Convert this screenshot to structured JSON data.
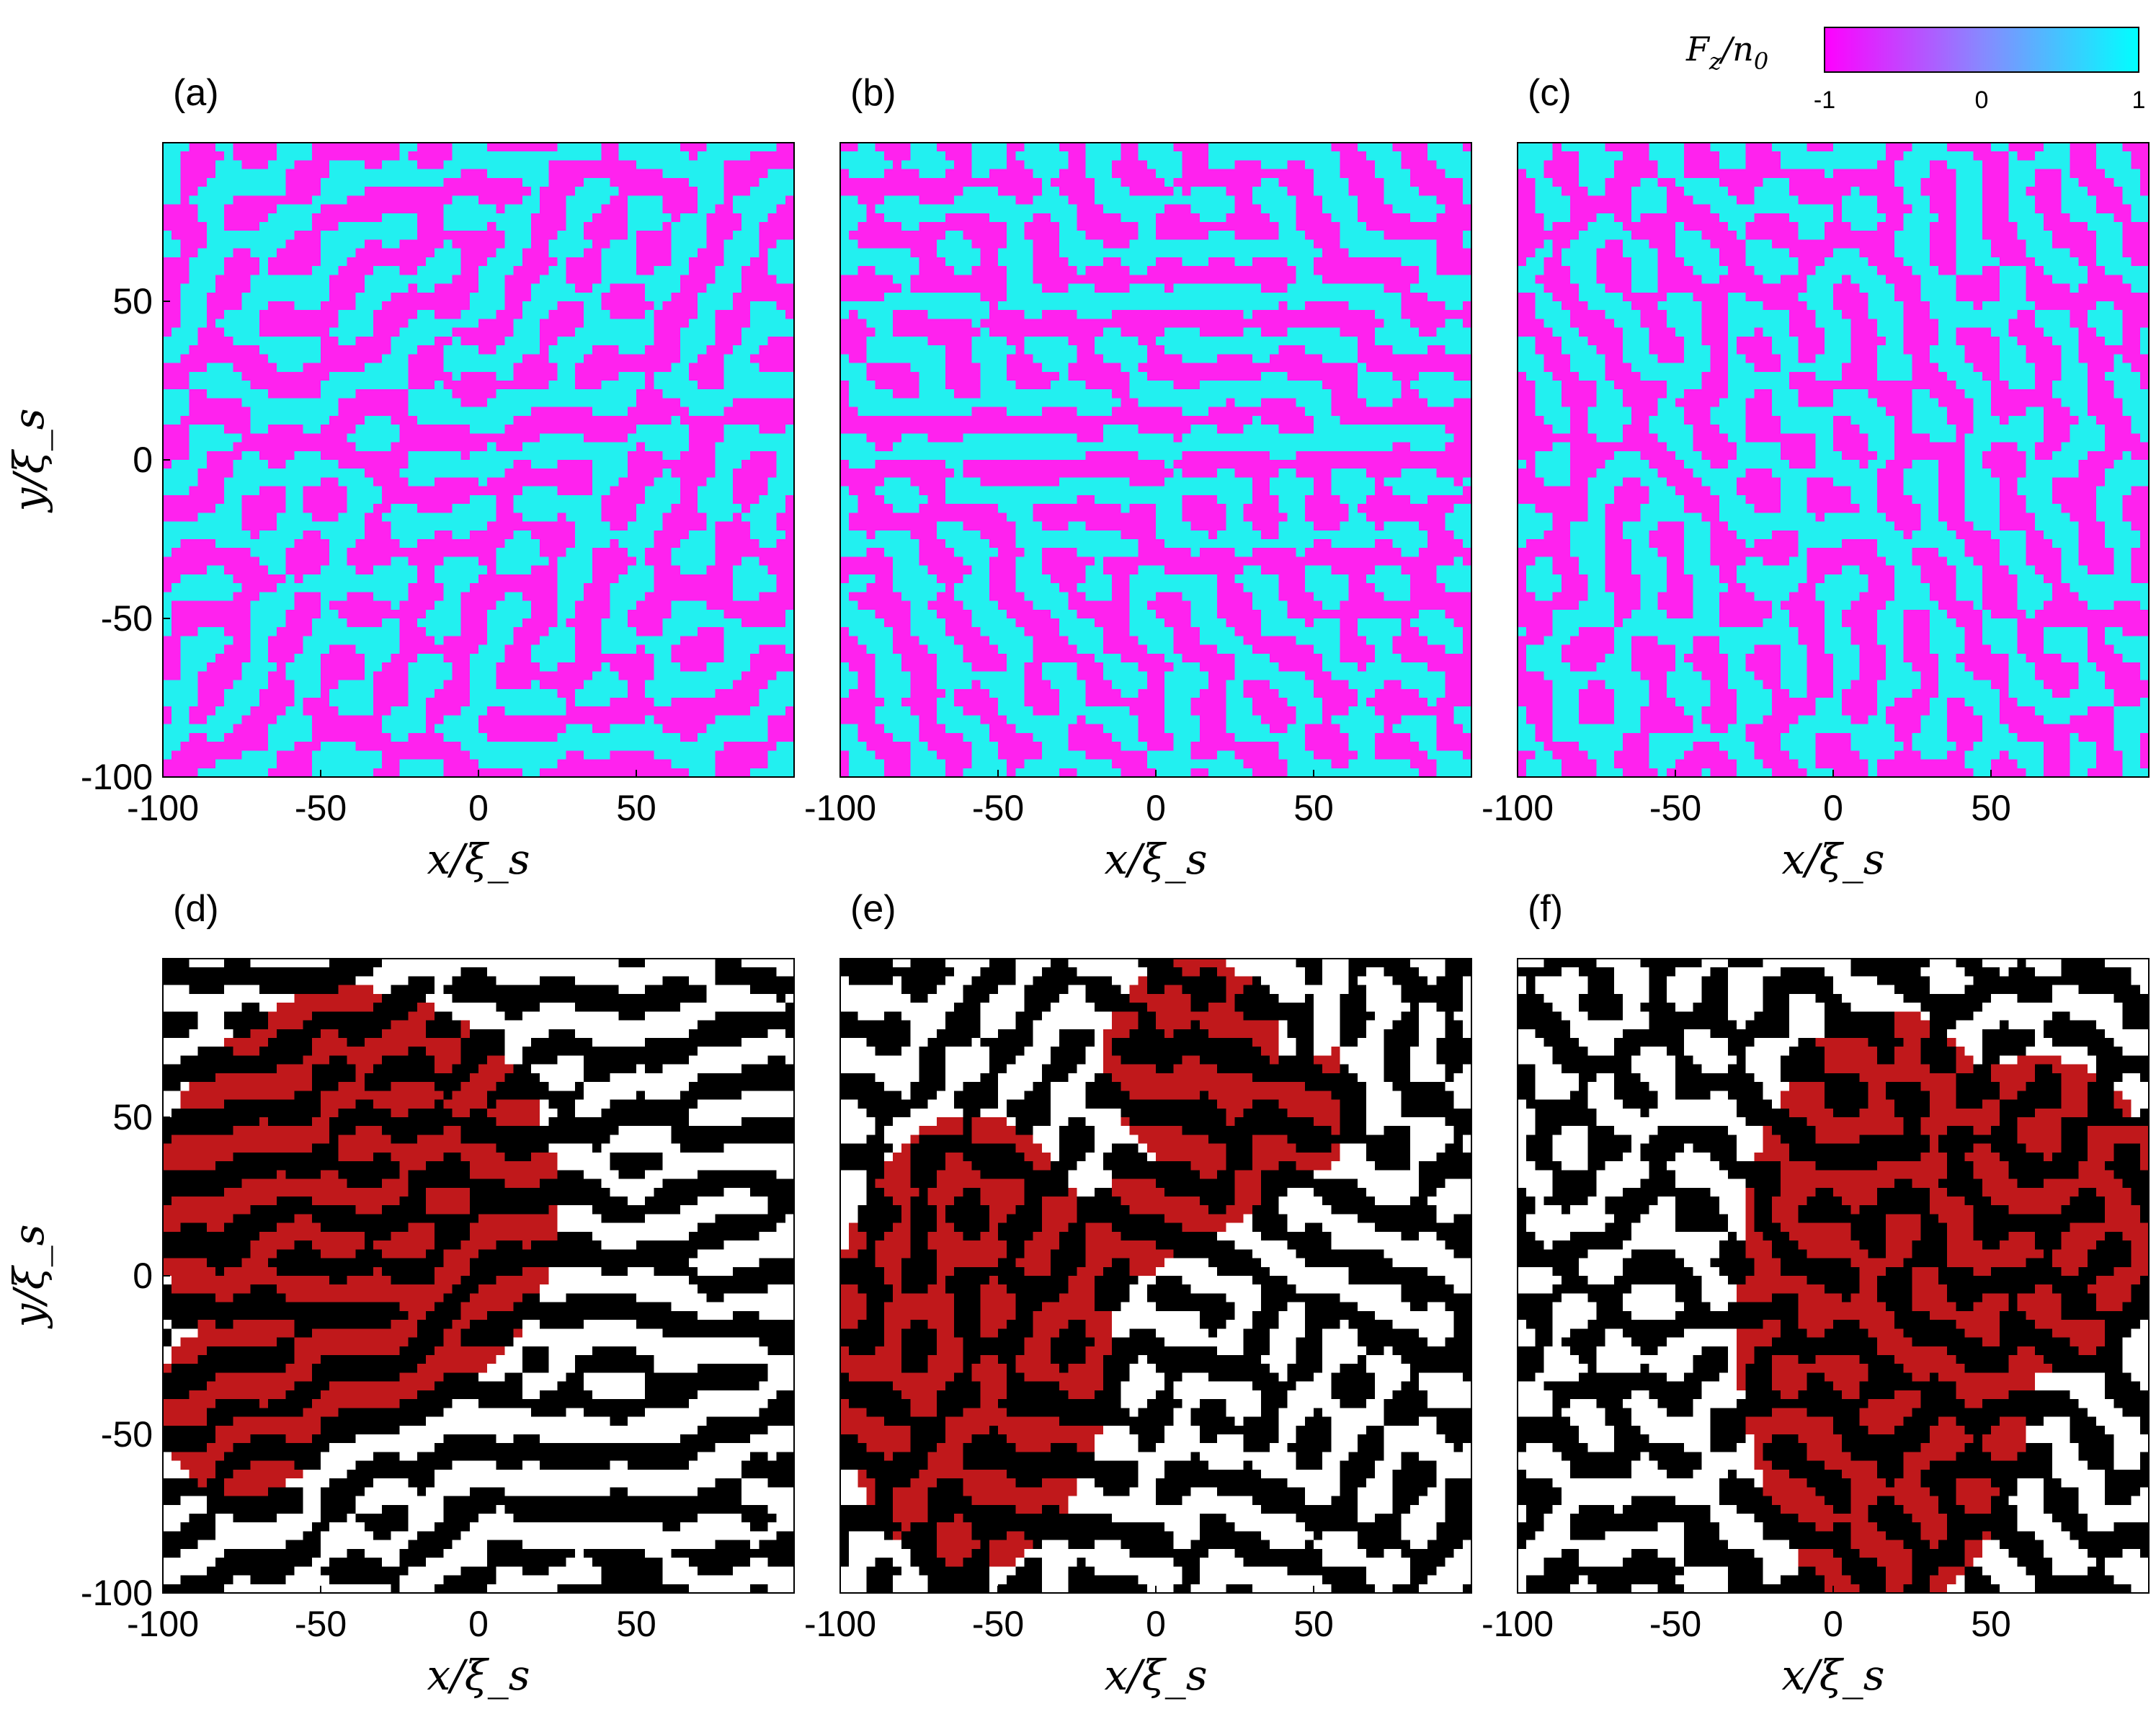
{
  "colorbar": {
    "label": "F_z/n_0",
    "ticks": [
      "-1",
      "0",
      "1"
    ],
    "low_color": "#ff00ff",
    "high_color": "#00ffff"
  },
  "colors": {
    "pink": "#ff22ee",
    "cyan": "#22f0f0",
    "black": "#000000",
    "white": "#ffffff",
    "red": "#c0181b"
  },
  "chart_data": [
    {
      "type": "heatmap",
      "panel": "(a)",
      "xlabel": "x/ξ_s",
      "ylabel": "y/ξ_s",
      "xlim": [
        -100,
        100
      ],
      "ylim": [
        -100,
        100
      ],
      "xticks": [
        "-100",
        "-50",
        "0",
        "50"
      ],
      "yticks": [
        "-100",
        "-50",
        "0",
        "50"
      ],
      "colormap": "magenta-cyan",
      "clim": [
        -1,
        1
      ]
    },
    {
      "type": "heatmap",
      "panel": "(b)",
      "xlabel": "x/ξ_s",
      "ylabel": "",
      "xlim": [
        -100,
        100
      ],
      "ylim": [
        -100,
        100
      ],
      "xticks": [
        "-100",
        "-50",
        "0",
        "50"
      ],
      "yticks": [],
      "colormap": "magenta-cyan",
      "clim": [
        -1,
        1
      ]
    },
    {
      "type": "heatmap",
      "panel": "(c)",
      "xlabel": "x/ξ_s",
      "ylabel": "",
      "xlim": [
        -100,
        100
      ],
      "ylim": [
        -100,
        100
      ],
      "xticks": [
        "-100",
        "-50",
        "0",
        "50"
      ],
      "yticks": [],
      "colormap": "magenta-cyan",
      "clim": [
        -1,
        1
      ]
    },
    {
      "type": "heatmap",
      "panel": "(d)",
      "xlabel": "x/ξ_s",
      "ylabel": "y/ξ_s",
      "xlim": [
        -100,
        100
      ],
      "ylim": [
        -100,
        100
      ],
      "xticks": [
        "-100",
        "-50",
        "0",
        "50"
      ],
      "yticks": [
        "-100",
        "-50",
        "0",
        "50"
      ],
      "colormap": "black-white-red"
    },
    {
      "type": "heatmap",
      "panel": "(e)",
      "xlabel": "x/ξ_s",
      "ylabel": "",
      "xlim": [
        -100,
        100
      ],
      "ylim": [
        -100,
        100
      ],
      "xticks": [
        "-100",
        "-50",
        "0",
        "50"
      ],
      "yticks": [],
      "colormap": "black-white-red"
    },
    {
      "type": "heatmap",
      "panel": "(f)",
      "xlabel": "x/ξ_s",
      "ylabel": "",
      "xlim": [
        -100,
        100
      ],
      "ylim": [
        -100,
        100
      ],
      "xticks": [
        "-100",
        "-50",
        "0",
        "50"
      ],
      "yticks": [],
      "colormap": "black-white-red"
    }
  ]
}
